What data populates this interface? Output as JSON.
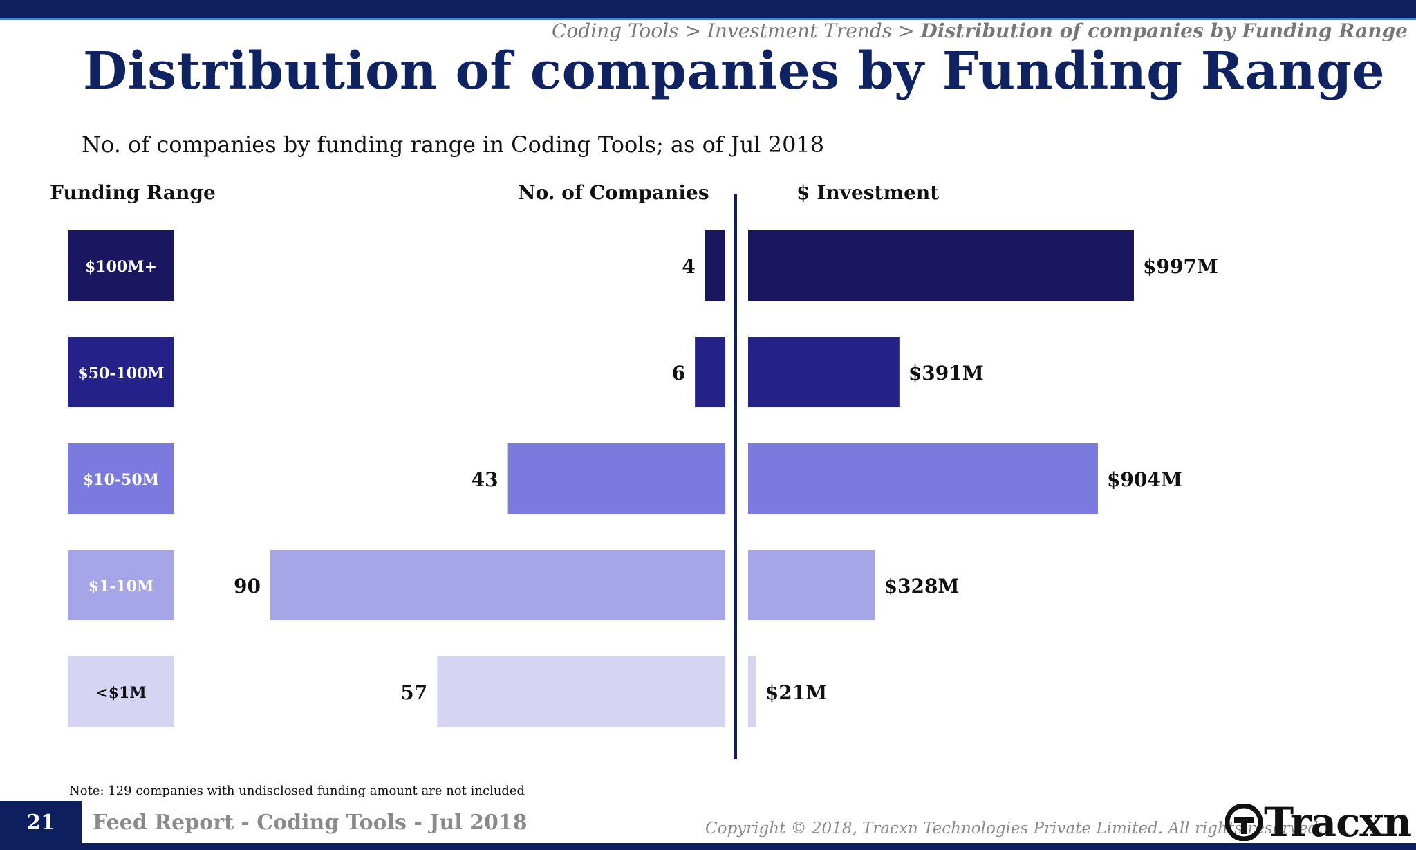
{
  "breadcrumb": {
    "path": "Coding Tools > Investment Trends > ",
    "current": "Distribution of companies by Funding Range"
  },
  "title": "Distribution of companies by Funding Range",
  "subtitle": "No. of companies by funding range in Coding Tools; as of Jul 2018",
  "chart_data": {
    "type": "bar",
    "column_headers": {
      "range": "Funding Range",
      "companies": "No. of Companies",
      "investment": "$ Investment"
    },
    "categories": [
      "$100M+",
      "$50-100M",
      "$10-50M",
      "$1-10M",
      "<$1M"
    ],
    "series": [
      {
        "values": [
          4,
          6,
          43,
          90,
          57
        ],
        "labels": [
          "4",
          "6",
          "43",
          "90",
          "57"
        ],
        "direction": "left"
      },
      {
        "values": [
          997,
          391,
          904,
          328,
          21
        ],
        "labels": [
          "$997M",
          "$391M",
          "$904M",
          "$328M",
          "$21M"
        ],
        "unit": "$M",
        "direction": "right"
      }
    ],
    "colors": [
      "#1a1760",
      "#242288",
      "#7b7ade",
      "#a5a5e8",
      "#d5d4f3"
    ]
  },
  "note": "Note: 129 companies with undisclosed funding amount are not included",
  "footer": {
    "page_number": "21",
    "report": "Feed Report - Coding Tools - Jul 2018",
    "copyright": "Copyright © 2018, Tracxn Technologies Private Limited. All rights reserved.",
    "logo": "Tracxn"
  }
}
